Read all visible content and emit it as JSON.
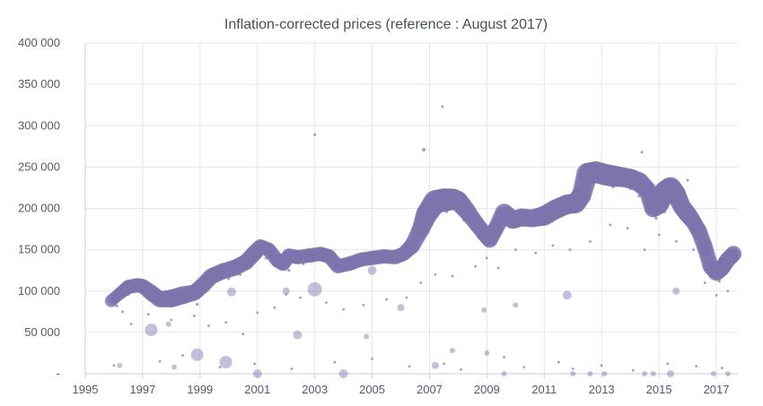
{
  "chart_data": {
    "type": "scatter",
    "title": "Inflation-corrected prices (reference : August 2017)",
    "xlabel": "",
    "ylabel": "",
    "xlim": [
      1995,
      2017.75
    ],
    "ylim": [
      0,
      400000
    ],
    "x_ticks": [
      "1995",
      "1997",
      "1999",
      "2001",
      "2003",
      "2005",
      "2007",
      "2009",
      "2011",
      "2013",
      "2015",
      "2017"
    ],
    "y_ticks": [
      "-",
      "50 000",
      "100 000",
      "150 000",
      "200 000",
      "250 000",
      "300 000",
      "350 000",
      "400 000"
    ],
    "grid": true,
    "legend": "none",
    "marker_color": "#7b74ad",
    "series": [
      {
        "trend": {
          "x": [
            1995.9,
            1996.2,
            1996.5,
            1996.8,
            1997.0,
            1997.3,
            1997.6,
            1998.0,
            1998.4,
            1998.8,
            1999.1,
            1999.4,
            1999.8,
            2000.2,
            2000.6,
            2000.9,
            2001.1,
            2001.4,
            2001.7,
            2001.9,
            2002.1,
            2002.4,
            2002.8,
            2003.2,
            2003.5,
            2003.8,
            2004.2,
            2004.6,
            2005.0,
            2005.4,
            2005.8,
            2006.1,
            2006.4,
            2006.7,
            2006.9,
            2007.2,
            2007.5,
            2007.8,
            2008.0,
            2008.3,
            2008.6,
            2008.9,
            2009.1,
            2009.3,
            2009.6,
            2009.9,
            2010.2,
            2010.6,
            2011.0,
            2011.4,
            2011.8,
            2012.1,
            2012.3,
            2012.5,
            2012.8,
            2013.1,
            2013.4,
            2013.7,
            2014.0,
            2014.3,
            2014.6,
            2014.8,
            2015.0,
            2015.2,
            2015.4,
            2015.6,
            2015.8,
            2016.0,
            2016.2,
            2016.4,
            2016.6,
            2016.8,
            2017.0,
            2017.2,
            2017.4,
            2017.6
          ],
          "y": [
            88000,
            97000,
            105000,
            107000,
            106000,
            98000,
            90000,
            91000,
            95000,
            98000,
            107000,
            118000,
            124000,
            128000,
            135000,
            146000,
            154000,
            150000,
            137000,
            133000,
            143000,
            141000,
            143000,
            145000,
            142000,
            130000,
            133000,
            138000,
            140000,
            142000,
            141000,
            145000,
            155000,
            175000,
            193000,
            208000,
            210000,
            211000,
            209000,
            197000,
            183000,
            170000,
            162000,
            175000,
            195000,
            186000,
            189000,
            188000,
            191000,
            199000,
            205000,
            206000,
            216000,
            242000,
            244000,
            241000,
            239000,
            238000,
            236000,
            232000,
            222000,
            200000,
            205000,
            220000,
            225000,
            217000,
            202000,
            193000,
            184000,
            172000,
            153000,
            130000,
            122000,
            128000,
            138000,
            145000
          ],
          "r": [
            7,
            7,
            8,
            8,
            8,
            9,
            9,
            10,
            10,
            9,
            9,
            9,
            9,
            9,
            9,
            9,
            8,
            8,
            8,
            8,
            8,
            8,
            8,
            8,
            8,
            8,
            8,
            8,
            8,
            8,
            8,
            8,
            9,
            10,
            12,
            13,
            13,
            12,
            11,
            10,
            9,
            9,
            9,
            9,
            10,
            10,
            10,
            10,
            11,
            11,
            11,
            11,
            11,
            12,
            12,
            12,
            12,
            11,
            11,
            11,
            10,
            10,
            11,
            12,
            12,
            11,
            10,
            10,
            9,
            9,
            9,
            9,
            9,
            9,
            9,
            9
          ]
        },
        "scatter": {
          "x": [
            1996.1,
            1996.5,
            1997.0,
            1997.3,
            1997.7,
            1998.2,
            1998.6,
            1998.9,
            1999.2,
            1999.6,
            2000.0,
            2000.4,
            2000.7,
            2001.3,
            2001.8,
            2002.1,
            2002.3,
            2002.6,
            2002.9,
            2003.3,
            2003.6,
            2003.9,
            2004.4,
            2004.9,
            2005.3,
            2005.7,
            2006.0,
            2006.5,
            2006.8,
            2007.0,
            2007.3,
            2007.6,
            2007.9,
            2008.2,
            2008.5,
            2008.8,
            2009.0,
            2009.2,
            2009.5,
            2009.8,
            2010.1,
            2010.4,
            2010.8,
            2011.2,
            2011.6,
            2011.9,
            2012.2,
            2012.5,
            2012.8,
            2013.1,
            2013.4,
            2013.7,
            2014.0,
            2014.3,
            2014.6,
            2014.9,
            2015.2,
            2015.5,
            2015.8,
            2016.1,
            2016.4,
            2016.7,
            2016.9,
            2017.1,
            2017.3,
            2017.5,
            2003.0,
            2006.8,
            2007.45,
            2014.4,
            2016.0,
            1996.3,
            1996.6,
            1997.2,
            1998.0,
            1998.8,
            1999.3,
            1999.9,
            2000.5,
            2001.0,
            2001.6,
            2002.0,
            2002.5,
            2003.4,
            2004.0,
            2004.7,
            2005.5,
            2006.2,
            2006.7,
            2007.2,
            2007.8,
            2008.6,
            2009.0,
            2009.4,
            2010.0,
            2010.7,
            2011.3,
            2011.9,
            2012.6,
            2013.3,
            2013.9,
            2014.5,
            2015.0,
            2015.6,
            2016.2,
            2016.6,
            2017.0,
            2017.4,
            1996.0,
            1997.6,
            1998.4,
            1999.7,
            2000.9,
            2002.2,
            2003.7,
            2005.0,
            2006.3,
            2007.5,
            2008.1,
            2009.6,
            2010.3,
            2011.5,
            2012.0,
            2013.0,
            2014.1,
            2015.3,
            2016.3,
            2017.2
          ],
          "y": [
            82000,
            96000,
            100000,
            89000,
            85000,
            93000,
            90000,
            84000,
            100000,
            112000,
            115000,
            120000,
            130000,
            140000,
            128000,
            125000,
            135000,
            133000,
            136000,
            138000,
            131000,
            126000,
            128000,
            133000,
            135000,
            139000,
            140000,
            148000,
            165000,
            190000,
            198000,
            196000,
            199000,
            186000,
            175000,
            165000,
            155000,
            160000,
            180000,
            178000,
            180000,
            182000,
            183000,
            188000,
            195000,
            197000,
            200000,
            228000,
            232000,
            230000,
            226000,
            229000,
            224000,
            215000,
            205000,
            188000,
            196000,
            210000,
            200000,
            186000,
            170000,
            145000,
            118000,
            112000,
            120000,
            130000,
            289000,
            271000,
            323000,
            268000,
            234000,
            75000,
            60000,
            72000,
            65000,
            70000,
            58000,
            62000,
            48000,
            74000,
            80000,
            96000,
            92000,
            86000,
            78000,
            83000,
            90000,
            92000,
            110000,
            120000,
            118000,
            130000,
            140000,
            128000,
            150000,
            146000,
            155000,
            150000,
            160000,
            180000,
            176000,
            150000,
            168000,
            160000,
            150000,
            110000,
            95000,
            100000,
            10000,
            15000,
            22000,
            8000,
            12000,
            6000,
            14000,
            18000,
            9000,
            12000,
            5000,
            20000,
            8000,
            14000,
            6000,
            10000,
            4000,
            12000,
            9000,
            7000
          ],
          "r": [
            1.6,
            1.6,
            1.6,
            1.6,
            1.6,
            1.6,
            1.6,
            1.6,
            1.6,
            1.6,
            1.6,
            1.6,
            1.6,
            1.6,
            1.6,
            1.6,
            1.6,
            1.6,
            1.6,
            1.6,
            1.6,
            1.6,
            1.6,
            1.6,
            1.6,
            1.6,
            1.6,
            1.6,
            1.6,
            1.6,
            1.6,
            1.6,
            1.6,
            1.6,
            1.6,
            1.6,
            1.6,
            1.6,
            1.6,
            1.6,
            1.6,
            1.6,
            1.6,
            1.6,
            1.6,
            1.6,
            1.6,
            1.6,
            1.6,
            1.6,
            1.6,
            1.6,
            1.6,
            1.6,
            1.6,
            1.6,
            1.6,
            1.6,
            1.6,
            1.6,
            1.6,
            1.6,
            1.6,
            1.6,
            1.6,
            1.6,
            1.5,
            2.0,
            1.5,
            1.5,
            1.5,
            1.4,
            1.4,
            1.4,
            1.4,
            1.4,
            1.4,
            1.4,
            1.4,
            1.4,
            1.4,
            1.4,
            1.4,
            1.4,
            1.4,
            1.4,
            1.4,
            1.4,
            1.4,
            1.4,
            1.4,
            1.4,
            1.4,
            1.4,
            1.4,
            1.4,
            1.4,
            1.4,
            1.4,
            1.4,
            1.4,
            1.4,
            1.4,
            1.4,
            1.4,
            1.4,
            1.4,
            1.4,
            1.4,
            1.4,
            1.4,
            1.4,
            1.4,
            1.4,
            1.4,
            1.4,
            1.4,
            1.4,
            1.4,
            1.4,
            1.4,
            1.4,
            1.4,
            1.4,
            1.4,
            1.4,
            1.4,
            1.4
          ]
        },
        "outliers_large": {
          "x": [
            1997.3,
            1998.9,
            1999.9,
            2000.1,
            2002.0,
            2002.4,
            2003.0,
            2004.0,
            2005.0,
            2006.0,
            2007.2,
            2008.9,
            2010.0,
            2011.8,
            2013.1,
            1996.2,
            1998.1,
            2001.0,
            2004.8,
            2009.6,
            2012.0,
            2014.5,
            2015.4,
            2016.9,
            2015.6,
            2017.4,
            1997.9,
            2007.8,
            2009.0,
            2012.6,
            2014.8
          ],
          "y": [
            53000,
            23000,
            14000,
            99000,
            100000,
            47000,
            102000,
            0,
            125000,
            80000,
            10000,
            77000,
            83000,
            95000,
            0,
            10000,
            8000,
            0,
            45000,
            0,
            0,
            0,
            0,
            0,
            100000,
            0,
            60000,
            28000,
            25000,
            0,
            0
          ],
          "r": [
            7,
            7,
            7,
            5,
            4,
            5,
            8,
            5,
            5,
            4,
            4,
            3,
            3,
            5,
            3,
            3,
            3,
            5,
            3,
            3,
            3,
            3,
            4,
            3,
            4,
            3,
            3,
            3,
            3,
            3,
            3
          ]
        }
      }
    ]
  }
}
